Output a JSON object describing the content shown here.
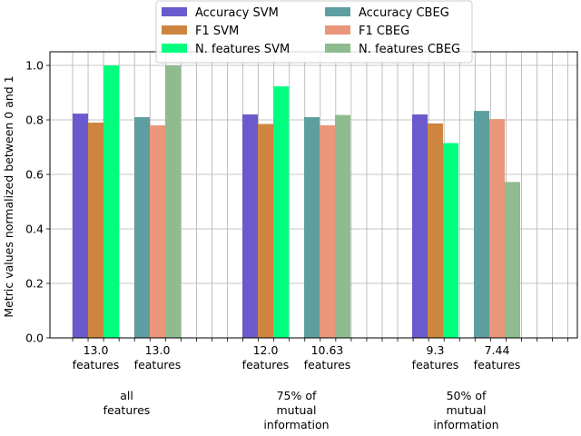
{
  "chart_data": {
    "type": "bar",
    "title": "",
    "xlabel": "",
    "ylabel": "Metric values normalized between 0 and 1",
    "ylim": [
      0,
      1.05
    ],
    "yticks": [
      "0.0",
      "0.2",
      "0.4",
      "0.6",
      "0.8",
      "1.0"
    ],
    "grid": true,
    "legend_position": "top-center",
    "groups": [
      {
        "label": [
          "all",
          "features"
        ],
        "subgroups": [
          {
            "model": "SVM",
            "tick_label": [
              "13.0",
              "features"
            ]
          },
          {
            "model": "CBEG",
            "tick_label": [
              "13.0",
              "features"
            ]
          }
        ]
      },
      {
        "label": [
          "75% of",
          "mutual",
          "information"
        ],
        "subgroups": [
          {
            "model": "SVM",
            "tick_label": [
              "12.0",
              "features"
            ]
          },
          {
            "model": "CBEG",
            "tick_label": [
              "10.63",
              "features"
            ]
          }
        ]
      },
      {
        "label": [
          "50% of",
          "mutual",
          "information"
        ],
        "subgroups": [
          {
            "model": "SVM",
            "tick_label": [
              "9.3",
              "features"
            ]
          },
          {
            "model": "CBEG",
            "tick_label": [
              "7.44",
              "features"
            ]
          }
        ]
      }
    ],
    "series": [
      {
        "name": "Accuracy SVM",
        "model": "SVM",
        "color": "#6a5acd",
        "values": [
          0.823,
          0.82,
          0.82
        ]
      },
      {
        "name": "F1 SVM",
        "model": "SVM",
        "color": "#cd853f",
        "values": [
          0.79,
          0.785,
          0.787
        ]
      },
      {
        "name": "N. features SVM",
        "model": "SVM",
        "color": "#00ff7f",
        "values": [
          1.0,
          0.923,
          0.715
        ]
      },
      {
        "name": "Accuracy CBEG",
        "model": "CBEG",
        "color": "#5f9ea0",
        "values": [
          0.81,
          0.81,
          0.833
        ]
      },
      {
        "name": "F1 CBEG",
        "model": "CBEG",
        "color": "#e9967a",
        "values": [
          0.78,
          0.78,
          0.803
        ]
      },
      {
        "name": "N. features CBEG",
        "model": "CBEG",
        "color": "#8fbc8f",
        "values": [
          1.0,
          0.818,
          0.572
        ]
      }
    ]
  }
}
